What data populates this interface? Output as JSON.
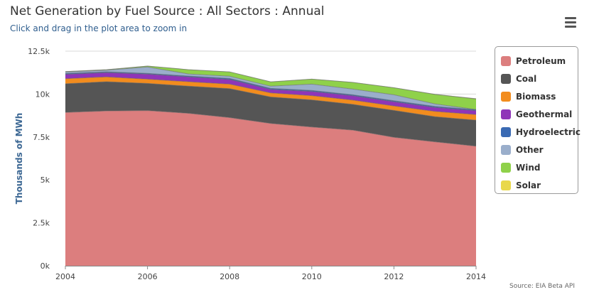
{
  "header": {
    "title": "Net Generation by Fuel Source : All Sectors : Annual",
    "subtitle": "Click and drag in the plot area to zoom in"
  },
  "credits": "Source: EIA Beta API",
  "chart_data": {
    "type": "area",
    "stacked": true,
    "ylabel": "Thousands of MWh",
    "xlabel": "",
    "x": [
      2004,
      2005,
      2006,
      2007,
      2008,
      2009,
      2010,
      2011,
      2012,
      2013,
      2014
    ],
    "x_ticks": [
      2004,
      2006,
      2008,
      2010,
      2012,
      2014
    ],
    "ylim": [
      0,
      12500
    ],
    "y_ticks": [
      0,
      2500,
      5000,
      7500,
      10000,
      12500
    ],
    "y_tick_labels": [
      "0k",
      "2.5k",
      "5k",
      "7.5k",
      "10k",
      "12.5k"
    ],
    "grid": true,
    "legend_position": "right",
    "series": [
      {
        "name": "Petroleum",
        "color": "#dc7e7e",
        "values": [
          8930,
          9020,
          9040,
          8880,
          8630,
          8290,
          8080,
          7900,
          7480,
          7220,
          6960
        ]
      },
      {
        "name": "Coal",
        "color": "#555555",
        "values": [
          1670,
          1700,
          1580,
          1580,
          1690,
          1540,
          1580,
          1500,
          1570,
          1460,
          1520
        ]
      },
      {
        "name": "Biomass",
        "color": "#f28c1e",
        "values": [
          300,
          280,
          250,
          260,
          260,
          240,
          250,
          250,
          260,
          310,
          330
        ]
      },
      {
        "name": "Geothermal",
        "color": "#8f35b8",
        "values": [
          250,
          250,
          290,
          280,
          270,
          200,
          240,
          250,
          240,
          230,
          220
        ]
      },
      {
        "name": "Hydroelectric",
        "color": "#3a6ab3",
        "values": [
          50,
          50,
          50,
          50,
          60,
          60,
          60,
          60,
          60,
          60,
          60
        ]
      },
      {
        "name": "Other",
        "color": "#9aaecb",
        "values": [
          90,
          90,
          370,
          120,
          130,
          130,
          370,
          330,
          350,
          150,
          10
        ]
      },
      {
        "name": "Wind",
        "color": "#8fd14a",
        "values": [
          20,
          30,
          50,
          250,
          250,
          250,
          290,
          390,
          410,
          550,
          620
        ]
      },
      {
        "name": "Solar",
        "color": "#e9d84a",
        "values": [
          0,
          0,
          0,
          0,
          0,
          0,
          0,
          0,
          0,
          5,
          10
        ]
      }
    ]
  }
}
